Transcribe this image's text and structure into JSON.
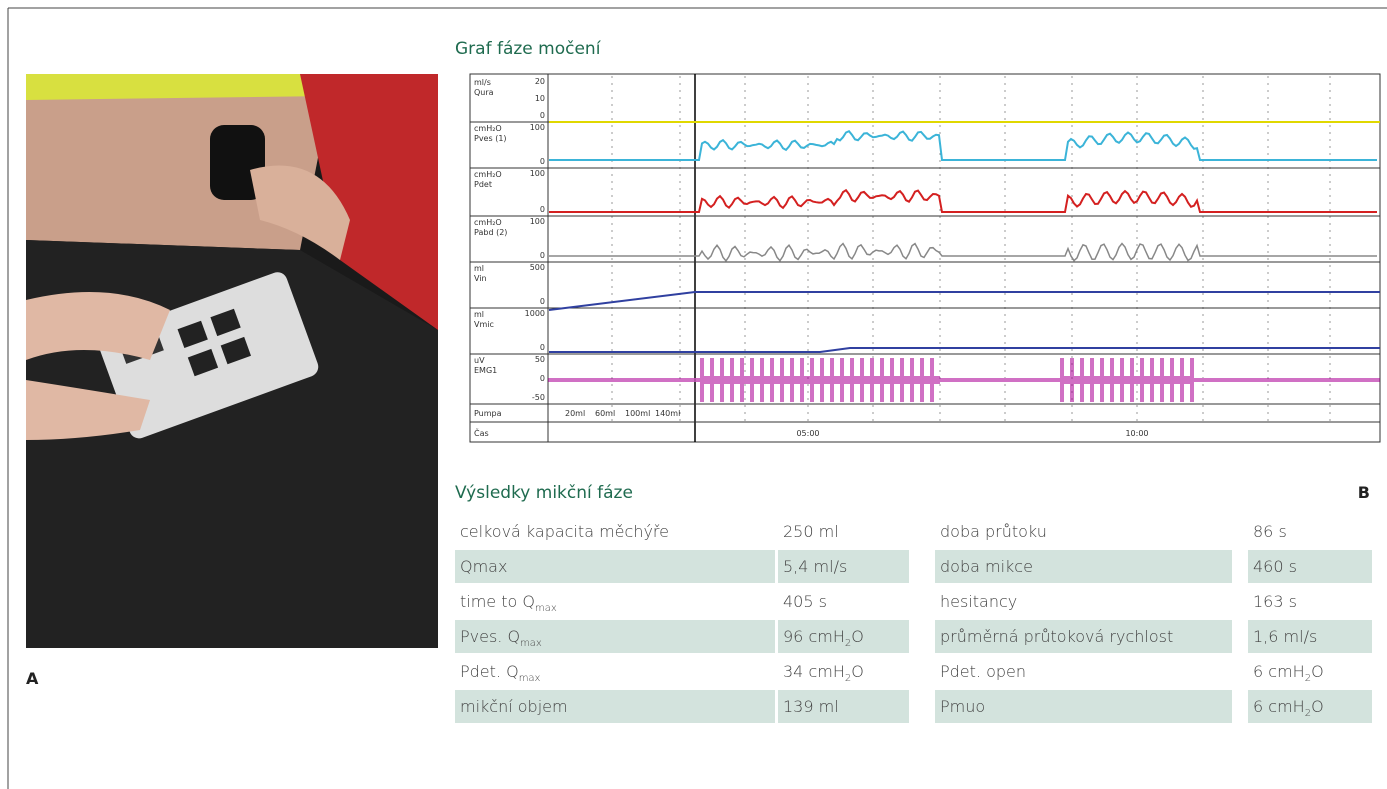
{
  "figure": {
    "label_a": "A",
    "label_b": "B"
  },
  "graph": {
    "title": "Graf fáze močení",
    "channels": [
      {
        "unit": "ml/s",
        "name": "Qura",
        "color": "#d8d000",
        "scale": [
          "20",
          "10",
          "0"
        ]
      },
      {
        "unit": "cmH₂O",
        "name": "Pves (1)",
        "color": "#3bb4d8",
        "scale": [
          "100",
          "0"
        ]
      },
      {
        "unit": "cmH₂O",
        "name": "Pdet",
        "color": "#d42020",
        "scale": [
          "100",
          "0"
        ]
      },
      {
        "unit": "cmH₂O",
        "name": "Pabd (2)",
        "color": "#888888",
        "scale": [
          "100",
          "0"
        ]
      },
      {
        "unit": "ml",
        "name": "Vin",
        "color": "#3040a0",
        "scale": [
          "500",
          "0"
        ]
      },
      {
        "unit": "ml",
        "name": "Vmic",
        "color": "#3040a0",
        "scale": [
          "1000",
          "0"
        ]
      },
      {
        "unit": "uV",
        "name": "EMG1",
        "color": "#c040b0",
        "scale": [
          "50",
          "0",
          "-50"
        ]
      }
    ],
    "pump": "Pumpa",
    "pump_marks": [
      "20ml",
      "60ml",
      "100ml",
      "140ml"
    ],
    "time": "Čas",
    "time_labels": [
      "05:00",
      "10:00"
    ]
  },
  "results": {
    "title": "Výsledky mikční fáze",
    "rows": [
      [
        "celková kapacita měchýře",
        "250 ml",
        "doba průtoku",
        "86 s"
      ],
      [
        "Qmax",
        "5,4 ml/s",
        "doba mikce",
        "460 s"
      ],
      [
        {
          "text": "time to Q",
          "sub": "max"
        },
        "405 s",
        "hesitancy",
        "163 s"
      ],
      [
        {
          "text": "Pves. Q",
          "sub": "max"
        },
        {
          "text": "96 cmH",
          "sub": "2",
          "tail": "O"
        },
        "průměrná průtoková rychlost",
        "1,6 ml/s"
      ],
      [
        {
          "text": "Pdet. Q",
          "sub": "max"
        },
        {
          "text": "34 cmH",
          "sub": "2",
          "tail": "O"
        },
        "Pdet. open",
        {
          "text": "6 cmH",
          "sub": "2",
          "tail": "O"
        }
      ],
      [
        "mikční objem",
        "139 ml",
        "Pmuo",
        {
          "text": "6 cmH",
          "sub": "2",
          "tail": "O"
        }
      ]
    ]
  }
}
